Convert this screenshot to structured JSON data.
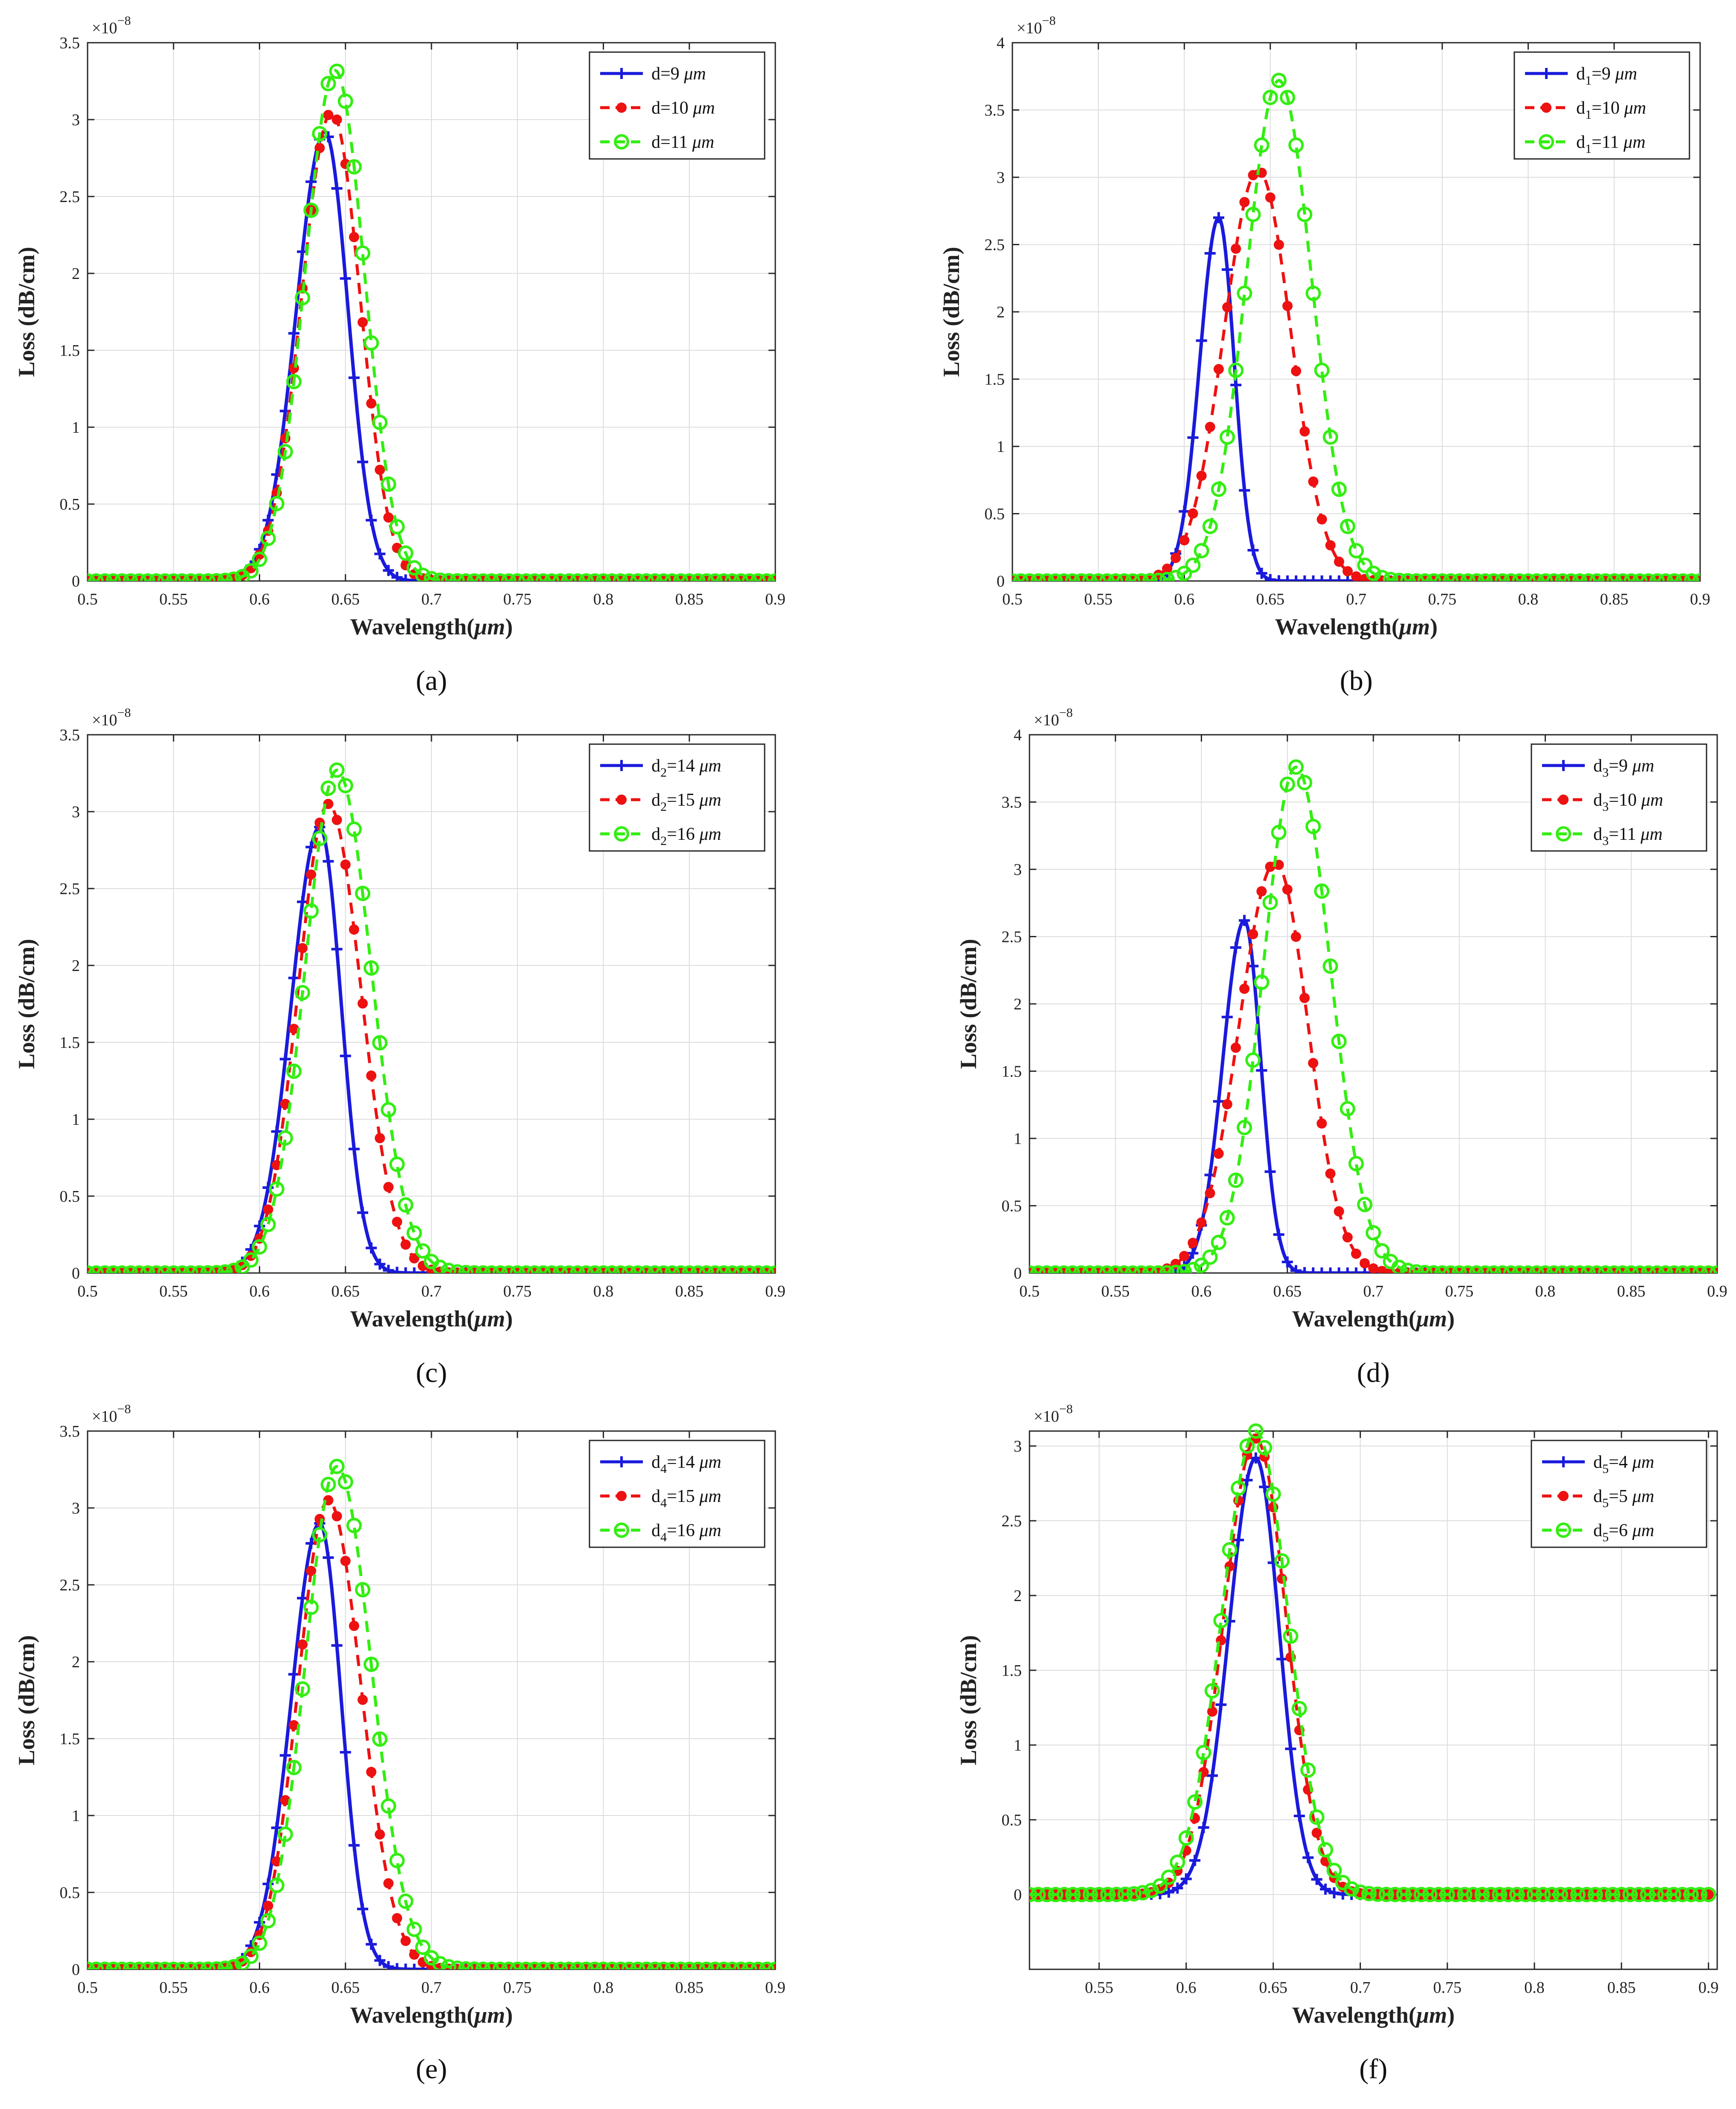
{
  "figure": {
    "xlabel_main": "Wavelength(",
    "xlabel_unit": "μm",
    "xlabel_close": ")",
    "ylabel": "Loss (dB/cm)",
    "multiplier_base": "×10",
    "multiplier_exp": "−8",
    "colors": {
      "series1": "#1a1adc",
      "series2": "#ee1111",
      "series3": "#33ee11",
      "grid": "#dcdcdc",
      "axis": "#262626"
    },
    "icons": {
      "series1_marker": "plus-marker-icon",
      "series2_marker": "dot-marker-icon",
      "series3_marker": "circle-marker-icon"
    }
  },
  "chart_data": [
    {
      "type": "line",
      "panel": "a",
      "panel_label": "(a)",
      "xlabel": "Wavelength(μm)",
      "ylabel": "Loss (dB/cm)",
      "y_multiplier": "×10^-8",
      "xlim": [
        0.5,
        0.9
      ],
      "ylim": [
        0,
        3.5
      ],
      "xticks": [
        0.5,
        0.55,
        0.6,
        0.65,
        0.7,
        0.75,
        0.8,
        0.85,
        0.9
      ],
      "yticks": [
        0,
        0.5,
        1,
        1.5,
        2,
        2.5,
        3,
        3.5
      ],
      "legend_position": "top-right",
      "grid": true,
      "series": [
        {
          "name": "d=9",
          "sub": "",
          "unit": "μm",
          "peak_x": 0.638,
          "peak_y": 2.92,
          "sigma_left": 0.0165,
          "sigma_right": 0.0135
        },
        {
          "name": "d=10",
          "sub": "",
          "unit": "μm",
          "peak_x": 0.642,
          "peak_y": 3.05,
          "sigma_left": 0.0175,
          "sigma_right": 0.0165
        },
        {
          "name": "d=11",
          "sub": "",
          "unit": "μm",
          "peak_x": 0.644,
          "peak_y": 3.32,
          "sigma_left": 0.0175,
          "sigma_right": 0.017
        }
      ]
    },
    {
      "type": "line",
      "panel": "b",
      "panel_label": "(b)",
      "xlabel": "Wavelength(μm)",
      "ylabel": "Loss (dB/cm)",
      "y_multiplier": "×10^-8",
      "xlim": [
        0.5,
        0.9
      ],
      "ylim": [
        0,
        4
      ],
      "xticks": [
        0.5,
        0.55,
        0.6,
        0.65,
        0.7,
        0.75,
        0.8,
        0.85,
        0.9
      ],
      "yticks": [
        0,
        0.5,
        1,
        1.5,
        2,
        2.5,
        3,
        3.5,
        4
      ],
      "legend_position": "top-right",
      "grid": true,
      "series": [
        {
          "name": "d1=9",
          "sub": "1",
          "unit": "μm",
          "peak_x": 0.62,
          "peak_y": 2.7,
          "sigma_left": 0.011,
          "sigma_right": 0.009
        },
        {
          "name": "d1=10",
          "sub": "1",
          "unit": "μm",
          "peak_x": 0.643,
          "peak_y": 3.05,
          "sigma_left": 0.02,
          "sigma_right": 0.019
        },
        {
          "name": "d1=11",
          "sub": "1",
          "unit": "μm",
          "peak_x": 0.655,
          "peak_y": 3.72,
          "sigma_left": 0.019,
          "sigma_right": 0.019
        }
      ]
    },
    {
      "type": "line",
      "panel": "c",
      "panel_label": "(c)",
      "xlabel": "Wavelength(μm)",
      "ylabel": "Loss (dB/cm)",
      "y_multiplier": "×10^-8",
      "xlim": [
        0.5,
        0.9
      ],
      "ylim": [
        0,
        3.5
      ],
      "xticks": [
        0.5,
        0.55,
        0.6,
        0.65,
        0.7,
        0.75,
        0.8,
        0.85,
        0.9
      ],
      "yticks": [
        0,
        0.5,
        1,
        1.5,
        2,
        2.5,
        3,
        3.5
      ],
      "legend_position": "top-right",
      "grid": true,
      "series": [
        {
          "name": "d2=14",
          "sub": "2",
          "unit": "μm",
          "peak_x": 0.635,
          "peak_y": 2.9,
          "sigma_left": 0.0165,
          "sigma_right": 0.0125
        },
        {
          "name": "d2=15",
          "sub": "2",
          "unit": "μm",
          "peak_x": 0.64,
          "peak_y": 3.05,
          "sigma_left": 0.0175,
          "sigma_right": 0.019
        },
        {
          "name": "d2=16",
          "sub": "2",
          "unit": "μm",
          "peak_x": 0.645,
          "peak_y": 3.27,
          "sigma_left": 0.0185,
          "sigma_right": 0.02
        }
      ]
    },
    {
      "type": "line",
      "panel": "d",
      "panel_label": "(d)",
      "xlabel": "Wavelength(μm)",
      "ylabel": "Loss (dB/cm)",
      "y_multiplier": "×10^-8",
      "xlim": [
        0.5,
        0.9
      ],
      "ylim": [
        0,
        4
      ],
      "xticks": [
        0.5,
        0.55,
        0.6,
        0.65,
        0.7,
        0.75,
        0.8,
        0.85,
        0.9
      ],
      "yticks": [
        0,
        0.5,
        1,
        1.5,
        2,
        2.5,
        3,
        3.5,
        4
      ],
      "legend_position": "top-right",
      "grid": true,
      "series": [
        {
          "name": "d3=9",
          "sub": "3",
          "unit": "μm",
          "peak_x": 0.625,
          "peak_y": 2.62,
          "sigma_left": 0.0125,
          "sigma_right": 0.0095
        },
        {
          "name": "d3=10",
          "sub": "3",
          "unit": "μm",
          "peak_x": 0.643,
          "peak_y": 3.05,
          "sigma_left": 0.021,
          "sigma_right": 0.019
        },
        {
          "name": "d3=11",
          "sub": "3",
          "unit": "μm",
          "peak_x": 0.655,
          "peak_y": 3.76,
          "sigma_left": 0.019,
          "sigma_right": 0.02
        }
      ]
    },
    {
      "type": "line",
      "panel": "e",
      "panel_label": "(e)",
      "xlabel": "Wavelength(μm)",
      "ylabel": "Loss (dB/cm)",
      "y_multiplier": "×10^-8",
      "xlim": [
        0.5,
        0.9
      ],
      "ylim": [
        0,
        3.5
      ],
      "xticks": [
        0.5,
        0.55,
        0.6,
        0.65,
        0.7,
        0.75,
        0.8,
        0.85,
        0.9
      ],
      "yticks": [
        0,
        0.5,
        1,
        1.5,
        2,
        2.5,
        3,
        3.5
      ],
      "legend_position": "top-right",
      "grid": true,
      "series": [
        {
          "name": "d4=14",
          "sub": "4",
          "unit": "μm",
          "peak_x": 0.635,
          "peak_y": 2.9,
          "sigma_left": 0.0165,
          "sigma_right": 0.0125
        },
        {
          "name": "d4=15",
          "sub": "4",
          "unit": "μm",
          "peak_x": 0.64,
          "peak_y": 3.05,
          "sigma_left": 0.0175,
          "sigma_right": 0.019
        },
        {
          "name": "d4=16",
          "sub": "4",
          "unit": "μm",
          "peak_x": 0.645,
          "peak_y": 3.27,
          "sigma_left": 0.0185,
          "sigma_right": 0.02
        }
      ]
    },
    {
      "type": "line",
      "panel": "f",
      "panel_label": "(f)",
      "xlabel": "Wavelength(μm)",
      "ylabel": "Loss (dB/cm)",
      "y_multiplier": "×10^-8",
      "xlim": [
        0.51,
        0.905
      ],
      "ylim": [
        -0.5,
        3.1
      ],
      "xticks": [
        0.55,
        0.6,
        0.65,
        0.7,
        0.75,
        0.8,
        0.85,
        0.9
      ],
      "yticks": [
        0,
        0.5,
        1,
        1.5,
        2,
        2.5,
        3
      ],
      "legend_position": "top-right",
      "grid": true,
      "series": [
        {
          "name": "d5=4",
          "sub": "5",
          "unit": "μm",
          "peak_x": 0.64,
          "peak_y": 2.92,
          "sigma_left": 0.0155,
          "sigma_right": 0.0135
        },
        {
          "name": "d5=5",
          "sub": "5",
          "unit": "μm",
          "peak_x": 0.64,
          "peak_y": 3.05,
          "sigma_left": 0.0185,
          "sigma_right": 0.0175
        },
        {
          "name": "d5=6",
          "sub": "5",
          "unit": "μm",
          "peak_x": 0.64,
          "peak_y": 3.1,
          "sigma_left": 0.0195,
          "sigma_right": 0.0185
        }
      ]
    }
  ]
}
